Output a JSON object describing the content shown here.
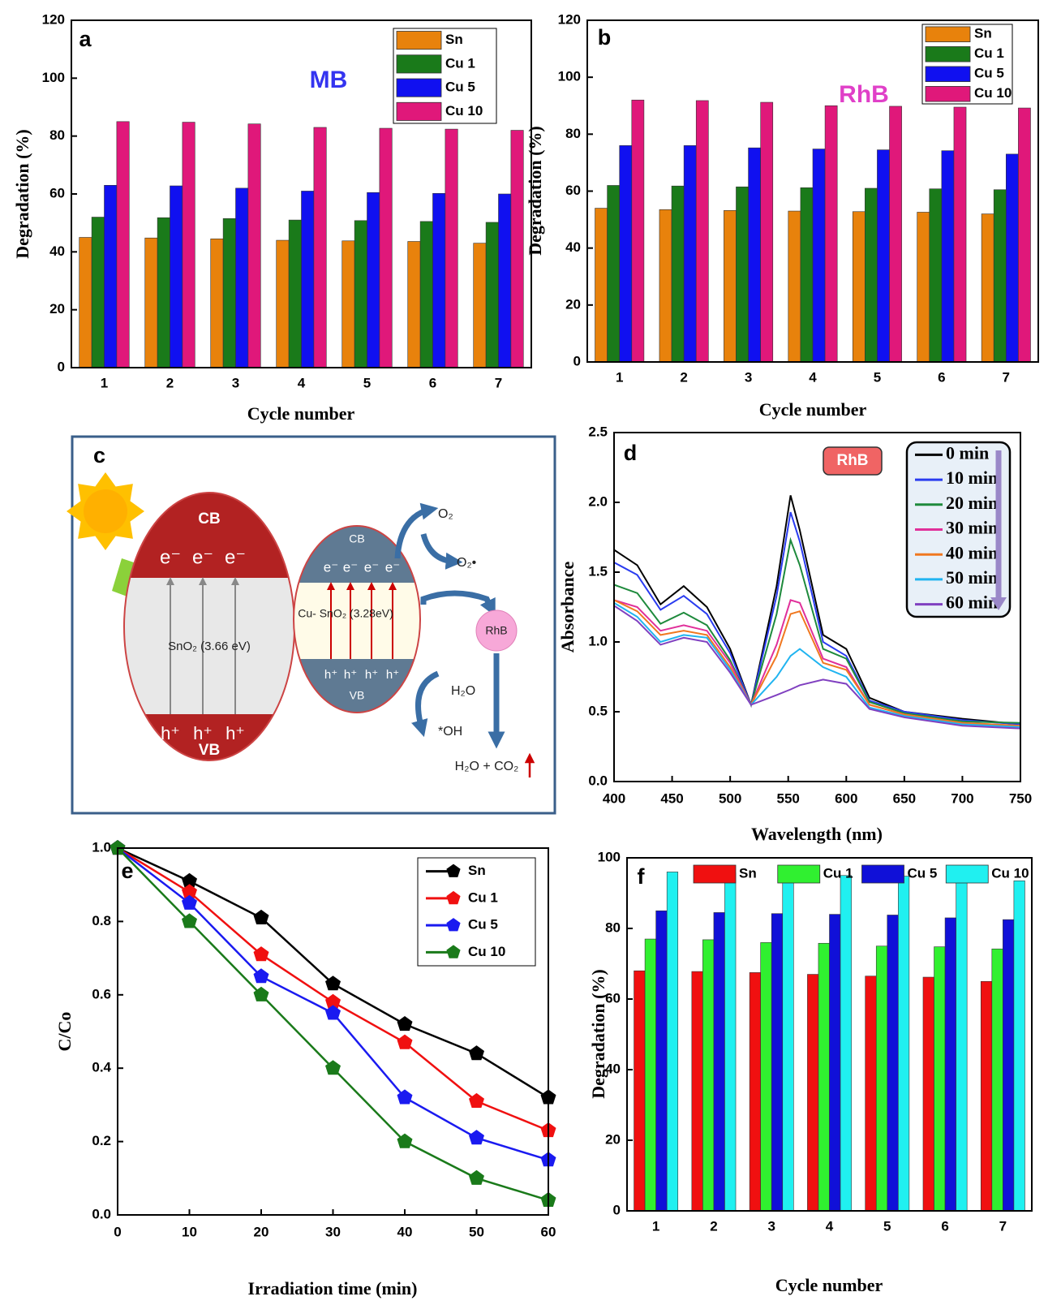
{
  "chart_data": [
    {
      "type": "bar",
      "panel_label": "a",
      "annotation": "MB",
      "annotation_color": "#3434f0",
      "ylabel": "Degradation (%)",
      "xlabel": "Cycle number",
      "categories": [
        "1",
        "2",
        "3",
        "4",
        "5",
        "6",
        "7"
      ],
      "series": [
        {
          "name": "Sn",
          "color": "#e8820c",
          "values": [
            45,
            44.8,
            44.5,
            44,
            43.8,
            43.6,
            43
          ]
        },
        {
          "name": "Cu 1",
          "color": "#1a7a1a",
          "values": [
            52,
            51.8,
            51.5,
            51,
            50.8,
            50.5,
            50.2
          ]
        },
        {
          "name": "Cu 5",
          "color": "#1010f0",
          "values": [
            63,
            62.8,
            62,
            61,
            60.5,
            60.2,
            60
          ]
        },
        {
          "name": "Cu 10",
          "color": "#e0187a",
          "values": [
            85,
            84.8,
            84.2,
            83,
            82.7,
            82.4,
            82
          ]
        }
      ],
      "ylim": [
        0,
        120
      ],
      "yticks": [
        0,
        20,
        40,
        60,
        80,
        100,
        120
      ],
      "legend": "top-right"
    },
    {
      "type": "bar",
      "panel_label": "b",
      "annotation": "RhB",
      "annotation_color": "#e040c8",
      "ylabel": "Degradation (%)",
      "xlabel": "Cycle number",
      "categories": [
        "1",
        "2",
        "3",
        "4",
        "5",
        "6",
        "7"
      ],
      "series": [
        {
          "name": "Sn",
          "color": "#e8820c",
          "values": [
            54,
            53.5,
            53.2,
            53,
            52.8,
            52.6,
            52
          ]
        },
        {
          "name": "Cu 1",
          "color": "#1a7a1a",
          "values": [
            62,
            61.8,
            61.5,
            61.2,
            61,
            60.8,
            60.5
          ]
        },
        {
          "name": "Cu 5",
          "color": "#1010f0",
          "values": [
            76,
            76,
            75.2,
            74.8,
            74.5,
            74.2,
            73
          ]
        },
        {
          "name": "Cu 10",
          "color": "#e0187a",
          "values": [
            92,
            91.8,
            91.2,
            90,
            89.8,
            89.5,
            89.2
          ]
        }
      ],
      "ylim": [
        0,
        120
      ],
      "yticks": [
        0,
        20,
        40,
        60,
        80,
        100,
        120
      ],
      "legend": "top-right"
    },
    {
      "type": "line",
      "panel_label": "d",
      "annotation": "RhB",
      "annotation_color": "#f06464",
      "ylabel": "Absorbance",
      "xlabel": "Wavelength (nm)",
      "x": [
        400,
        420,
        440,
        460,
        480,
        500,
        518,
        540,
        552,
        560,
        580,
        600,
        620,
        650,
        700,
        750
      ],
      "series": [
        {
          "name": "0 min",
          "color": "#000000",
          "values": [
            1.66,
            1.55,
            1.27,
            1.4,
            1.25,
            0.95,
            0.55,
            1.4,
            2.05,
            1.8,
            1.05,
            0.95,
            0.6,
            0.5,
            0.45,
            0.41
          ]
        },
        {
          "name": "10 min",
          "color": "#2a3cf0",
          "values": [
            1.57,
            1.48,
            1.23,
            1.33,
            1.2,
            0.92,
            0.55,
            1.33,
            1.93,
            1.72,
            1.0,
            0.9,
            0.58,
            0.5,
            0.44,
            0.41
          ]
        },
        {
          "name": "20 min",
          "color": "#1e8a3c",
          "values": [
            1.41,
            1.35,
            1.13,
            1.21,
            1.12,
            0.87,
            0.55,
            1.2,
            1.73,
            1.55,
            0.95,
            0.88,
            0.57,
            0.49,
            0.43,
            0.42
          ]
        },
        {
          "name": "30 min",
          "color": "#e0309a",
          "values": [
            1.3,
            1.25,
            1.08,
            1.12,
            1.08,
            0.85,
            0.55,
            0.98,
            1.3,
            1.28,
            0.88,
            0.82,
            0.55,
            0.48,
            0.42,
            0.4
          ]
        },
        {
          "name": "40 min",
          "color": "#f07820",
          "values": [
            1.3,
            1.22,
            1.05,
            1.08,
            1.05,
            0.82,
            0.55,
            0.9,
            1.2,
            1.22,
            0.85,
            0.8,
            0.55,
            0.48,
            0.42,
            0.4
          ]
        },
        {
          "name": "50 min",
          "color": "#20b4f0",
          "values": [
            1.28,
            1.18,
            1.0,
            1.05,
            1.03,
            0.8,
            0.55,
            0.75,
            0.9,
            0.95,
            0.82,
            0.75,
            0.53,
            0.47,
            0.41,
            0.39
          ]
        },
        {
          "name": "60 min",
          "color": "#8040c0",
          "values": [
            1.26,
            1.15,
            0.98,
            1.03,
            1.0,
            0.78,
            0.55,
            0.62,
            0.66,
            0.69,
            0.73,
            0.7,
            0.52,
            0.46,
            0.4,
            0.38
          ]
        }
      ],
      "xlim": [
        400,
        750
      ],
      "xticks": [
        400,
        450,
        500,
        550,
        600,
        650,
        700,
        750
      ],
      "ylim": [
        0,
        2.5
      ],
      "yticks": [
        {
          "value": 0,
          "label": "0.0"
        },
        0.5,
        {
          "value": 1,
          "label": "1.0"
        },
        1.5,
        {
          "value": 2,
          "label": "2.0"
        },
        2.5
      ],
      "markers": false,
      "legend": "top-right"
    },
    {
      "type": "line",
      "panel_label": "e",
      "ylabel": "C/Co",
      "xlabel": "Irradiation time (min)",
      "x": [
        0,
        10,
        20,
        30,
        40,
        50,
        60
      ],
      "series": [
        {
          "name": "Sn",
          "color": "#000000",
          "values": [
            1,
            0.91,
            0.81,
            0.63,
            0.52,
            0.44,
            0.32
          ]
        },
        {
          "name": "Cu 1",
          "color": "#f01010",
          "values": [
            1,
            0.88,
            0.71,
            0.58,
            0.47,
            0.31,
            0.23
          ]
        },
        {
          "name": "Cu 5",
          "color": "#1a1af0",
          "values": [
            1,
            0.85,
            0.65,
            0.55,
            0.32,
            0.21,
            0.15
          ]
        },
        {
          "name": "Cu 10",
          "color": "#1a7a1a",
          "values": [
            1,
            0.8,
            0.6,
            0.4,
            0.2,
            0.1,
            0.04
          ]
        }
      ],
      "xlim": [
        0,
        60
      ],
      "xticks": [
        0,
        10,
        20,
        30,
        40,
        50,
        60
      ],
      "ylim": [
        0,
        1
      ],
      "yticks": [
        {
          "value": 0,
          "label": "0.0"
        },
        0.2,
        0.4,
        0.6,
        0.8,
        {
          "value": 1,
          "label": "1.0"
        }
      ],
      "markers": true,
      "legend": "top-right"
    },
    {
      "type": "bar",
      "panel_label": "f",
      "ylabel": "Degradation (%)",
      "xlabel": "Cycle number",
      "categories": [
        "1",
        "2",
        "3",
        "4",
        "5",
        "6",
        "7"
      ],
      "series": [
        {
          "name": "Sn",
          "color": "#f01010",
          "values": [
            68,
            67.8,
            67.5,
            67,
            66.5,
            66.2,
            65
          ]
        },
        {
          "name": "Cu 1",
          "color": "#30f030",
          "values": [
            77,
            76.8,
            76,
            75.8,
            75,
            74.8,
            74.2
          ]
        },
        {
          "name": "Cu 5",
          "color": "#1010d8",
          "values": [
            85,
            84.5,
            84.2,
            84,
            83.8,
            83,
            82.5
          ]
        },
        {
          "name": "Cu 10",
          "color": "#20f0f0",
          "values": [
            96,
            95.8,
            95.5,
            95,
            94.8,
            94.5,
            93.5
          ]
        }
      ],
      "ylim": [
        0,
        100
      ],
      "yticks": [
        0,
        20,
        40,
        60,
        80,
        100
      ],
      "legend": "top"
    }
  ],
  "diagram": {
    "panel_label": "c",
    "left": {
      "cb": "CB",
      "vb": "VB",
      "gap": "SnO₂ (3.66 eV)",
      "electrons": [
        "e⁻",
        "e⁻",
        "e⁻"
      ],
      "holes": [
        "h⁺",
        "h⁺",
        "h⁺"
      ]
    },
    "right": {
      "cb": "CB",
      "vb": "VB",
      "gap": "Cu- SnO₂ (3.28eV)",
      "electrons": [
        "e⁻",
        "e⁻",
        "e⁻",
        "e⁻"
      ],
      "holes": [
        "h⁺",
        "h⁺",
        "h⁺",
        "h⁺"
      ]
    },
    "oxygen": "O₂",
    "superoxide": "O₂•",
    "water": "H₂O",
    "hydroxyl": "*OH",
    "dye": "RhB",
    "products": "H₂O + CO₂"
  }
}
